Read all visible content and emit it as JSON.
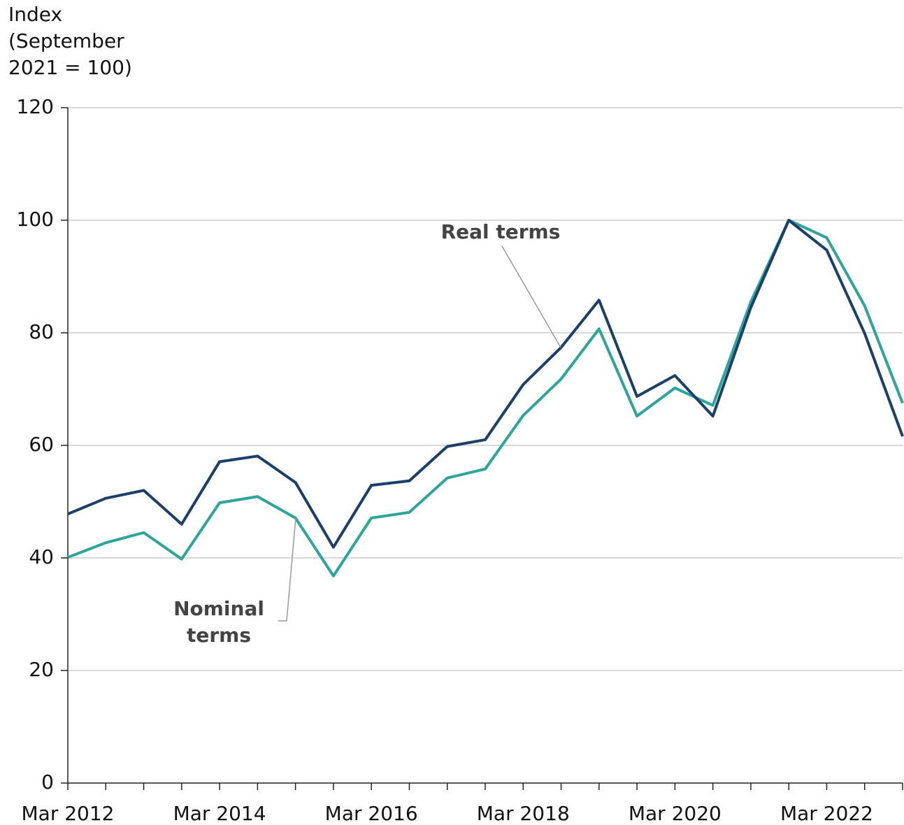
{
  "chart_data": {
    "type": "line",
    "y_label": [
      "Index",
      "(September",
      "2021 = 100)"
    ],
    "categories": [
      "Mar 2012",
      null,
      null,
      null,
      "Mar 2014",
      null,
      null,
      null,
      "Mar 2016",
      null,
      null,
      null,
      "Mar 2018",
      null,
      null,
      null,
      "Mar 2020",
      null,
      null,
      null,
      "Mar 2022",
      null,
      null
    ],
    "series": [
      {
        "name": "Real terms",
        "color": "#1b3f6b",
        "values": [
          47.8,
          50.6,
          52.0,
          46.0,
          57.1,
          58.1,
          53.4,
          41.9,
          52.9,
          53.7,
          59.8,
          61.0,
          70.8,
          77.4,
          85.8,
          68.7,
          72.4,
          65.2,
          84.5,
          100,
          94.7,
          79.9,
          61.6
        ]
      },
      {
        "name": "Nominal terms",
        "color": "#2ca59a",
        "values": [
          40.1,
          42.7,
          44.5,
          39.8,
          49.8,
          50.9,
          47.1,
          36.8,
          47.1,
          48.1,
          54.2,
          55.8,
          65.3,
          71.8,
          80.7,
          65.2,
          70.2,
          67.1,
          85.5,
          100,
          96.9,
          84.8,
          67.5
        ]
      }
    ],
    "annotations": [
      [
        "Real terms"
      ],
      [
        "Nominal",
        "terms"
      ]
    ],
    "ylim": [
      0,
      120
    ],
    "yticks": [
      0,
      20,
      40,
      60,
      80,
      100,
      120
    ],
    "grid": true
  }
}
